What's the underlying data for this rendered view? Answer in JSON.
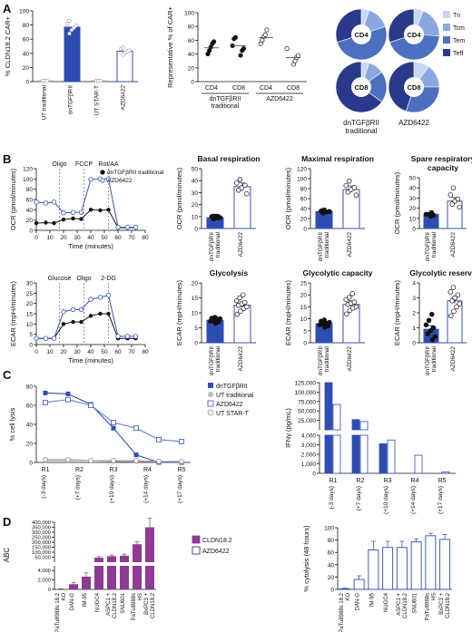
{
  "colors": {
    "dn_blue": "#2e4db3",
    "azd_blue": "#3355bb",
    "purple": "#8e3a96",
    "grey": "#c8c8c8",
    "dark_navy": "#1a2668",
    "teff": "#2a3a8a",
    "tem": "#4d6fbf",
    "tcm": "#8aa8dd",
    "tn": "#c7d7f2",
    "axis": "#111111"
  },
  "panels": {
    "A": "A",
    "B": "B",
    "C": "C",
    "D": "D"
  },
  "chart_data": [
    {
      "id": "A1",
      "type": "bar",
      "ylabel": "% CLDN18.2 CAR+",
      "yticks": [
        0,
        20,
        40,
        60,
        80,
        100
      ],
      "ylim": [
        0,
        100
      ],
      "categories": [
        "UT traditional",
        "dnTGFβRII",
        "UT STAR-T",
        "AZD6422"
      ],
      "values": [
        1,
        77,
        1,
        43
      ],
      "points": [
        [
          1,
          1,
          1
        ],
        [
          68,
          73,
          76,
          79,
          82,
          86
        ],
        [
          1,
          1,
          1
        ],
        [
          38,
          41,
          43,
          44,
          46,
          48
        ]
      ],
      "styles": [
        "grey",
        "dn",
        "grey",
        "azd"
      ]
    },
    {
      "id": "A2",
      "type": "scatter",
      "ylabel": "Representative % of CAR+",
      "yticks": [
        0,
        20,
        40,
        60,
        80,
        100
      ],
      "ylim": [
        0,
        100
      ],
      "categories": [
        "CD4",
        "CD8",
        "CD4",
        "CD8"
      ],
      "groups": [
        "dnTGFβRII traditional",
        "AZD6422"
      ],
      "points": [
        [
          40,
          45,
          50,
          55,
          58
        ],
        [
          38,
          45,
          48,
          52,
          62,
          64
        ],
        [
          55,
          60,
          65,
          68,
          75
        ],
        [
          25,
          30,
          35,
          38,
          48
        ]
      ],
      "means": [
        49,
        52,
        64,
        35
      ],
      "styles": [
        "dn",
        "dn",
        "azd",
        "azd"
      ]
    },
    {
      "id": "A3",
      "type": "pie",
      "legend": [
        "Tn",
        "Tcm",
        "Tem",
        "Teff"
      ],
      "pies": [
        {
          "center": "CD4",
          "values": [
            5,
            15,
            50,
            30
          ]
        },
        {
          "center": "CD4",
          "values": [
            6,
            20,
            44,
            30
          ]
        },
        {
          "center": "CD8",
          "values": [
            5,
            10,
            20,
            65
          ]
        },
        {
          "center": "CD8",
          "values": [
            10,
            15,
            30,
            45
          ]
        }
      ],
      "labels": [
        "dnTGFβRII traditional",
        "AZD6422"
      ]
    },
    {
      "id": "B1",
      "type": "line",
      "ylabel": "OCR (pmol/minutes)",
      "xlabel": "Time (minutes)",
      "yticks": [
        0,
        20,
        40,
        60,
        80,
        100,
        120
      ],
      "xticks": [
        0,
        10,
        20,
        30,
        40,
        50,
        60,
        70,
        80
      ],
      "ylim": [
        0,
        120
      ],
      "xlim": [
        0,
        80
      ],
      "vlines": [
        {
          "x": 17,
          "label": "Oligo"
        },
        {
          "x": 35,
          "label": "FCCP"
        },
        {
          "x": 53,
          "label": "Rot/AA"
        }
      ],
      "series": [
        {
          "name": "dnTGFβRII traditional",
          "x": [
            0,
            7,
            13,
            20,
            27,
            33,
            40,
            47,
            53,
            60,
            67,
            73
          ],
          "y": [
            14,
            15,
            14,
            21,
            23,
            22,
            40,
            39,
            40,
            5,
            5,
            5
          ]
        },
        {
          "name": "AZD6422",
          "x": [
            0,
            7,
            13,
            20,
            27,
            33,
            40,
            47,
            53,
            60,
            67,
            73
          ],
          "y": [
            55,
            53,
            55,
            34,
            35,
            35,
            99,
            100,
            100,
            6,
            6,
            6
          ]
        }
      ]
    },
    {
      "id": "B2",
      "type": "bar",
      "title": "Basal respiration",
      "ylabel": "OCR (pmol/minutes)",
      "yticks": [
        0,
        10,
        20,
        30,
        40,
        50
      ],
      "ylim": [
        0,
        50
      ],
      "categories": [
        "dnTGFβRII traditional",
        "AZD6422"
      ],
      "values": [
        9,
        35
      ],
      "points": [
        [
          8,
          9,
          9,
          10,
          10,
          10
        ],
        [
          29,
          32,
          34,
          36,
          38,
          41
        ]
      ],
      "styles": [
        "dn",
        "azd"
      ]
    },
    {
      "id": "B3",
      "type": "bar",
      "title": "Maximal respiration",
      "ylabel": "OCR (pmol/minutes)",
      "yticks": [
        0,
        20,
        40,
        60,
        80,
        100,
        120
      ],
      "ylim": [
        0,
        120
      ],
      "categories": [
        "dnTGFβRII traditional",
        "AZD6422"
      ],
      "values": [
        34,
        78
      ],
      "points": [
        [
          31,
          33,
          34,
          35,
          36
        ],
        [
          67,
          73,
          78,
          82,
          86,
          95
        ]
      ],
      "styles": [
        "dn",
        "azd"
      ]
    },
    {
      "id": "B4",
      "type": "bar",
      "title": "Spare respiratory capacity",
      "ylabel": "OCR (pmol/minutes)",
      "yticks": [
        0,
        10,
        20,
        30,
        40,
        50
      ],
      "ylim": [
        0,
        50
      ],
      "categories": [
        "dnTGFβRII traditional",
        "AZD6422"
      ],
      "values": [
        14,
        27
      ],
      "points": [
        [
          12,
          13,
          14,
          14,
          15
        ],
        [
          21,
          24,
          27,
          29,
          33,
          40
        ]
      ],
      "styles": [
        "dn",
        "azd"
      ]
    },
    {
      "id": "B5",
      "type": "line",
      "ylabel": "ECAR (mpH/minutes)",
      "xlabel": "Time (minutes)",
      "yticks": [
        0,
        5,
        10,
        15,
        20,
        25,
        30
      ],
      "xticks": [
        0,
        10,
        20,
        30,
        40,
        50,
        60,
        70,
        80
      ],
      "ylim": [
        0,
        30
      ],
      "xlim": [
        0,
        80
      ],
      "vlines": [
        {
          "x": 17,
          "label": "Glucose"
        },
        {
          "x": 35,
          "label": "Oligo"
        },
        {
          "x": 53,
          "label": "2-DG"
        }
      ],
      "series": [
        {
          "name": "dnTGFβRII traditional",
          "x": [
            0,
            7,
            13,
            20,
            27,
            33,
            40,
            47,
            53,
            60,
            67,
            73
          ],
          "y": [
            3,
            3,
            3,
            10,
            11,
            11,
            14,
            15,
            15,
            3,
            3,
            3
          ]
        },
        {
          "name": "AZD6422",
          "x": [
            0,
            7,
            13,
            20,
            27,
            33,
            40,
            47,
            53,
            60,
            67,
            73
          ],
          "y": [
            3,
            3,
            3,
            16,
            17,
            17,
            22,
            23,
            24,
            4,
            4,
            4
          ]
        }
      ]
    },
    {
      "id": "B6",
      "type": "bar",
      "title": "Glycolysis",
      "ylabel": "ECAR (mpH/minutes)",
      "yticks": [
        0,
        5,
        10,
        15,
        20
      ],
      "ylim": [
        0,
        20
      ],
      "categories": [
        "dnTGFβRII traditional",
        "AZD6422"
      ],
      "values": [
        7.5,
        12.5
      ],
      "points": [
        [
          6.5,
          7,
          7.2,
          7.5,
          7.8,
          8,
          8.2,
          8.5
        ],
        [
          9.5,
          10.5,
          11.5,
          12,
          12.5,
          13,
          13.5,
          14,
          15,
          16
        ]
      ],
      "styles": [
        "dn",
        "azd"
      ]
    },
    {
      "id": "B7",
      "type": "bar",
      "title": "Glycolytic capacity",
      "ylabel": "ECAR (mpH/minutes)",
      "yticks": [
        0,
        5,
        10,
        15,
        20,
        25
      ],
      "ylim": [
        0,
        25
      ],
      "categories": [
        "dnTGFβRII traditional",
        "AZD6422"
      ],
      "values": [
        8,
        16
      ],
      "points": [
        [
          6.5,
          7,
          7.5,
          8,
          8.2,
          8.5,
          9,
          9.5
        ],
        [
          12,
          13.5,
          14.5,
          15,
          16,
          16.5,
          17,
          18,
          19,
          20.5
        ]
      ],
      "styles": [
        "dn",
        "azd"
      ]
    },
    {
      "id": "B8",
      "type": "bar",
      "title": "Glycolytic reserve",
      "ylabel": "ECAR (mpH/minutes)",
      "yticks": [
        0,
        1,
        2,
        3,
        4
      ],
      "ylim": [
        0,
        4
      ],
      "categories": [
        "dnTGFβRII traditional",
        "AZD6422"
      ],
      "values": [
        0.9,
        2.8
      ],
      "points": [
        [
          0.2,
          0.4,
          0.6,
          0.8,
          1.0,
          1.2,
          1.5,
          1.9
        ],
        [
          1.8,
          2.1,
          2.4,
          2.6,
          2.8,
          3.0,
          3.2,
          3.4,
          3.7
        ]
      ],
      "styles": [
        "dn",
        "azd"
      ]
    },
    {
      "id": "C1",
      "type": "line",
      "ylabel": "% cell lysis",
      "yticks": [
        0,
        20,
        40,
        60,
        80
      ],
      "ylim": [
        0,
        80
      ],
      "categories": [
        "R1",
        "R2",
        "R3",
        "R4",
        "R5"
      ],
      "sublabels": [
        "(-3 days)",
        "(+7 days)",
        "(+10 days)",
        "(+14 days)",
        "(+17 days)"
      ],
      "legend_position": "top-right",
      "series": [
        {
          "name": "dnTGFβRII",
          "x": [
            1,
            2,
            3,
            4,
            5,
            6,
            7
          ],
          "y": [
            73,
            72,
            61,
            36,
            8,
            0,
            0
          ],
          "style": "dn-fill"
        },
        {
          "name": "UT traditional",
          "x": [
            1,
            2,
            3,
            4,
            5,
            6,
            7
          ],
          "y": [
            2,
            2,
            2,
            1,
            1,
            1,
            1
          ],
          "style": "grey-fill"
        },
        {
          "name": "AZD6422",
          "x": [
            1,
            2,
            3,
            4,
            5,
            6,
            7
          ],
          "y": [
            63,
            66,
            60,
            42,
            36,
            24,
            22
          ],
          "style": "azd-open"
        },
        {
          "name": "UT STAR-T",
          "x": [
            1,
            2,
            3,
            4,
            5,
            6,
            7
          ],
          "y": [
            3,
            3,
            2,
            2,
            2,
            1,
            1
          ],
          "style": "grey-open"
        }
      ]
    },
    {
      "id": "C2",
      "type": "bar",
      "ylabel": "IFNγ (pg/mL)",
      "yticks_top": [
        "25,000",
        "50,000",
        "75,000",
        "100,000",
        "125,000"
      ],
      "yticks_bottom": [
        "0",
        "1,000",
        "2,000",
        "3,000",
        "4,000"
      ],
      "categories": [
        "R1",
        "R2",
        "R3",
        "R4",
        "R5"
      ],
      "sublabels": [
        "(-3 days)",
        "(+7 days)",
        "(+10 days)",
        "(+14 days)",
        "(+17 days)"
      ],
      "series": [
        {
          "name": "dnTGFβRII",
          "values": [
            125000,
            27000,
            3100,
            0,
            0
          ]
        },
        {
          "name": "AZD6422",
          "values": [
            67000,
            22000,
            3500,
            1900,
            150
          ]
        }
      ]
    },
    {
      "id": "D1",
      "type": "bar",
      "ylabel": "ABC",
      "yticks_top": [
        "50,000",
        "100,000",
        "150,000",
        "200,000",
        "250,000",
        "300,000",
        "350,000",
        "400,000"
      ],
      "yticks_bottom": [
        "0",
        "2,000",
        "4,000"
      ],
      "categories": [
        "PaTu8988s 18.2 KO",
        "DAN-G",
        "IM-95",
        "NUGC4",
        "ASPC1 + CLDN18.2",
        "SNU601",
        "PaTu8988s HS",
        "BxPC3 + CLDN18.2"
      ],
      "legend": [
        "CLDN18.2",
        "AZD6422"
      ],
      "values": [
        100,
        1100,
        2700,
        45000,
        60000,
        65000,
        180000,
        350000
      ],
      "errors": [
        50,
        400,
        800,
        10000,
        12000,
        15000,
        25000,
        90000
      ]
    },
    {
      "id": "D2",
      "type": "bar",
      "ylabel": "% cytolysis (48 hours)",
      "yticks": [
        0,
        20,
        40,
        60,
        80,
        100
      ],
      "ylim": [
        0,
        100
      ],
      "categories": [
        "PaTu8988s 18.2 KO",
        "DAN-G",
        "IM-95",
        "NUGC4",
        "ASPC1 + CLDN18.2",
        "SNU601",
        "PaTu8988s HS",
        "BxPC3 + CLDN18.2"
      ],
      "values": [
        1,
        16,
        64,
        68,
        68,
        77,
        87,
        81
      ],
      "errors": [
        1,
        6,
        14,
        10,
        10,
        5,
        4,
        8
      ]
    }
  ]
}
